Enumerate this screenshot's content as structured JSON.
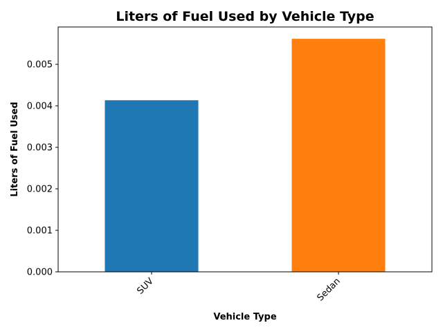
{
  "chart_data": {
    "type": "bar",
    "title": "Liters of Fuel Used by Vehicle Type",
    "xlabel": "Vehicle Type",
    "ylabel": "Liters of Fuel Used",
    "categories": [
      "SUV",
      "Sedan"
    ],
    "values": [
      0.004135,
      0.005615
    ],
    "colors": [
      "#1f77b4",
      "#ff7f0e"
    ],
    "ylim": [
      0,
      0.0059
    ],
    "yticks": [
      0,
      0.001,
      0.002,
      0.003,
      0.004,
      0.005
    ],
    "ytick_labels": [
      "0.000",
      "0.001",
      "0.002",
      "0.003",
      "0.004",
      "0.005"
    ],
    "grid": false,
    "legend": "none"
  }
}
